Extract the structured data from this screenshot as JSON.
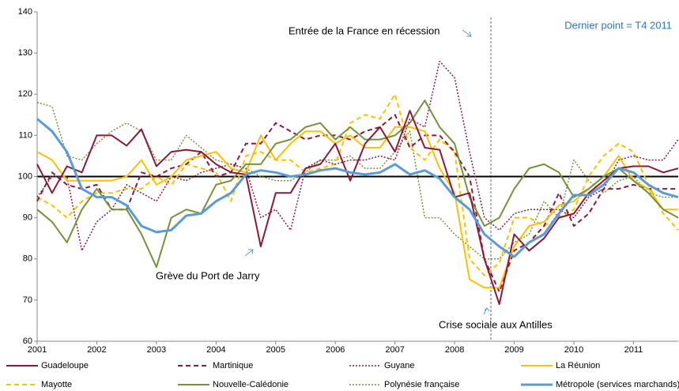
{
  "chart_data": {
    "type": "line",
    "annotations": [
      "Entrée de la France en récession",
      "Dernier point = T4 2011",
      "Grève du Port de Jarry",
      "Crise sociale aux Antilles"
    ],
    "categories": [
      "2001",
      null,
      null,
      null,
      "2002",
      null,
      null,
      null,
      "2003",
      null,
      null,
      null,
      "2004",
      null,
      null,
      null,
      "2005",
      null,
      null,
      null,
      "2006",
      null,
      null,
      null,
      "2007",
      null,
      null,
      null,
      "2008",
      null,
      null,
      null,
      "2009",
      null,
      null,
      null,
      "2010",
      null,
      null,
      null,
      "2011",
      null,
      null,
      null
    ],
    "ylim": [
      60,
      140
    ],
    "yticks": [
      60,
      70,
      80,
      90,
      100,
      110,
      120,
      130,
      140
    ],
    "baseline": 100,
    "series": [
      {
        "name": "Guadeloupe",
        "color": "#8b1a3a",
        "dash": "solid",
        "width": 2,
        "values": [
          103,
          96,
          102.5,
          101,
          110,
          110,
          107.5,
          111.5,
          102.5,
          106,
          106.5,
          106,
          103,
          101,
          100.5,
          83,
          96,
          96,
          102,
          103,
          108,
          99,
          108,
          112,
          106,
          116,
          107,
          106.5,
          95,
          96,
          80,
          69,
          86,
          82,
          85,
          90,
          91,
          96,
          99,
          102,
          102.5,
          102.5,
          101,
          102
        ]
      },
      {
        "name": "Martinique",
        "color": "#8b1a3a",
        "dash": "dashed",
        "width": 2,
        "values": [
          94,
          101,
          98,
          97,
          98,
          92,
          92,
          101,
          100,
          102,
          103,
          106,
          100,
          101,
          108,
          108,
          113,
          111,
          109,
          110,
          110,
          109,
          111,
          112,
          115,
          107,
          110,
          110,
          106,
          100,
          80,
          72,
          82,
          84,
          88,
          96,
          88,
          91,
          97,
          97,
          98,
          97,
          97,
          97
        ]
      },
      {
        "name": "Guyane",
        "color": "#8b1a3a",
        "dash": "dotted",
        "width": 1.5,
        "values": [
          95,
          100,
          100,
          82,
          89,
          92,
          98,
          96,
          94,
          100,
          99,
          101,
          102,
          103,
          102,
          90,
          92,
          87,
          102,
          104,
          103,
          104,
          104,
          105,
          104,
          114,
          112,
          128,
          124,
          106,
          90,
          87,
          91,
          92,
          92,
          92,
          90,
          95,
          97,
          104,
          105,
          104,
          104,
          109
        ]
      },
      {
        "name": "La Réunion",
        "color": "#ffc000",
        "dash": "solid",
        "width": 2,
        "values": [
          106,
          104,
          99,
          99,
          99,
          99,
          100,
          104,
          98,
          100,
          104,
          105,
          106,
          102,
          101,
          110,
          104,
          108,
          111,
          111,
          108,
          110,
          107,
          107,
          112,
          112,
          111,
          102,
          96,
          75,
          73,
          73,
          83,
          88,
          89,
          93,
          94,
          97,
          100,
          105,
          99,
          97,
          92,
          92
        ]
      },
      {
        "name": "Mayotte",
        "color": "#ffc000",
        "dash": "dashed",
        "width": 2,
        "values": [
          95,
          93,
          90,
          94,
          96,
          96,
          97,
          97,
          100,
          98,
          103,
          102,
          101,
          94,
          105,
          106,
          104,
          104,
          101,
          102,
          103,
          113,
          115,
          114,
          120,
          107,
          104,
          109,
          106,
          80,
          76,
          79,
          90,
          90,
          88,
          90,
          92,
          100,
          105,
          108,
          106,
          98,
          91,
          87
        ]
      },
      {
        "name": "Nouvelle-Calédonie",
        "color": "#76923c",
        "dash": "solid",
        "width": 2,
        "values": [
          92,
          89,
          84,
          92,
          97,
          92,
          92,
          86,
          78,
          90,
          92,
          91,
          98,
          99,
          103,
          103,
          108,
          109,
          112,
          113,
          109,
          112,
          109,
          109,
          110,
          113,
          118.5,
          112,
          108,
          95,
          88,
          90,
          97,
          102,
          103,
          101,
          95,
          97,
          100,
          102,
          99,
          96,
          92,
          90
        ]
      },
      {
        "name": "Polynésie française",
        "color": "#76923c",
        "dash": "dotted",
        "width": 1.5,
        "values": [
          118,
          117,
          105,
          104,
          108,
          111,
          113,
          111,
          104,
          104,
          110,
          107,
          104,
          103,
          102,
          100,
          99,
          99,
          101,
          104,
          104,
          105,
          102,
          102,
          106,
          111,
          90,
          90,
          86,
          83,
          80,
          80,
          84,
          86,
          94,
          90,
          104,
          99,
          96,
          99,
          100,
          96,
          95,
          95
        ]
      },
      {
        "name": "Métropole (services marchands)",
        "color": "#5b9bd5",
        "dash": "solid",
        "width": 3,
        "values": [
          114,
          111,
          106,
          97,
          95,
          95,
          93,
          88,
          86.5,
          87,
          90.5,
          91,
          94,
          96,
          100.5,
          101.5,
          101,
          100,
          100.5,
          101.5,
          102,
          101,
          100.5,
          101,
          103,
          100.5,
          101.5,
          99.5,
          95,
          92,
          86,
          83,
          80.5,
          84,
          86,
          91,
          95.5,
          95.5,
          98,
          102,
          101,
          98,
          96,
          95
        ]
      }
    ]
  }
}
